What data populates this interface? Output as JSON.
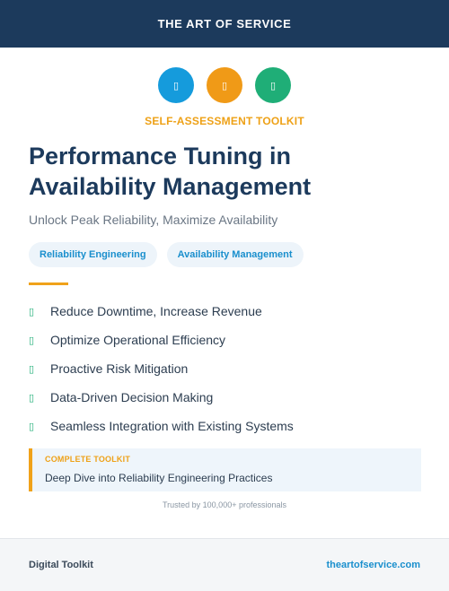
{
  "header": {
    "brand": "THE ART OF SERVICE"
  },
  "icons": [
    {
      "name": "box-icon",
      "glyph": "▯",
      "color": "#159bdc"
    },
    {
      "name": "box-icon",
      "glyph": "▯",
      "color": "#f09a17"
    },
    {
      "name": "box-icon",
      "glyph": "▯",
      "color": "#1fae77"
    }
  ],
  "kicker": "SELF-ASSESSMENT TOOLKIT",
  "title": "Performance Tuning in Availability Management",
  "subtitle": "Unlock Peak Reliability, Maximize Availability",
  "tags": [
    "Reliability Engineering",
    "Availability Management"
  ],
  "features": [
    "Reduce Downtime, Increase Revenue",
    "Optimize Operational Efficiency",
    "Proactive Risk Mitigation",
    "Data-Driven Decision Making",
    "Seamless Integration with Existing Systems"
  ],
  "check_glyph": "▯",
  "toolkit_box": {
    "kicker": "COMPLETE TOOLKIT",
    "text": "Deep Dive into Reliability Engineering Practices"
  },
  "trusted": "Trusted by 100,000+ professionals",
  "footer": {
    "left": "Digital Toolkit",
    "right": "theartofservice.com"
  }
}
